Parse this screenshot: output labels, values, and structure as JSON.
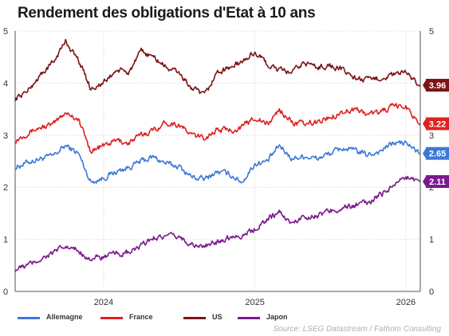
{
  "chart_data": {
    "type": "line",
    "title": "Rendement des obligations d'Etat à 10 ans",
    "xlabel": "",
    "ylabel": "",
    "xlim": [
      "2023-06-01",
      "2026-02-05"
    ],
    "ylim": [
      0,
      5
    ],
    "y_ticks": [
      "0",
      "1",
      "2",
      "3",
      "4",
      "5"
    ],
    "x_ticks": [
      {
        "date": "2024-01-01",
        "label": "2024"
      },
      {
        "date": "2025-01-01",
        "label": "2025"
      },
      {
        "date": "2026-01-01",
        "label": "2026"
      }
    ],
    "grid": true,
    "legend_position": "bottom",
    "source": "Source: LSEG Datastream / Fathom Consulting",
    "series": [
      {
        "name": "Allemagne",
        "color": "#3c78d8",
        "end_label": "2.65",
        "points": [
          [
            "2023-06-01",
            2.38
          ],
          [
            "2023-07-01",
            2.48
          ],
          [
            "2023-08-01",
            2.55
          ],
          [
            "2023-09-01",
            2.6
          ],
          [
            "2023-10-01",
            2.8
          ],
          [
            "2023-11-01",
            2.65
          ],
          [
            "2023-12-01",
            2.1
          ],
          [
            "2024-01-01",
            2.18
          ],
          [
            "2024-02-01",
            2.3
          ],
          [
            "2024-03-01",
            2.38
          ],
          [
            "2024-04-01",
            2.5
          ],
          [
            "2024-05-01",
            2.58
          ],
          [
            "2024-06-01",
            2.45
          ],
          [
            "2024-07-01",
            2.4
          ],
          [
            "2024-08-01",
            2.2
          ],
          [
            "2024-09-01",
            2.15
          ],
          [
            "2024-10-01",
            2.3
          ],
          [
            "2024-11-01",
            2.25
          ],
          [
            "2024-12-01",
            2.1
          ],
          [
            "2025-01-01",
            2.45
          ],
          [
            "2025-02-01",
            2.5
          ],
          [
            "2025-03-01",
            2.8
          ],
          [
            "2025-04-01",
            2.55
          ],
          [
            "2025-05-01",
            2.6
          ],
          [
            "2025-06-01",
            2.55
          ],
          [
            "2025-07-01",
            2.65
          ],
          [
            "2025-08-01",
            2.75
          ],
          [
            "2025-09-01",
            2.7
          ],
          [
            "2025-10-01",
            2.62
          ],
          [
            "2025-11-01",
            2.7
          ],
          [
            "2025-12-01",
            2.85
          ],
          [
            "2026-01-01",
            2.85
          ],
          [
            "2026-02-05",
            2.65
          ]
        ]
      },
      {
        "name": "France",
        "color": "#e02020",
        "end_label": "3.22",
        "points": [
          [
            "2023-06-01",
            2.9
          ],
          [
            "2023-07-01",
            3.05
          ],
          [
            "2023-08-01",
            3.15
          ],
          [
            "2023-09-01",
            3.2
          ],
          [
            "2023-10-01",
            3.45
          ],
          [
            "2023-11-01",
            3.3
          ],
          [
            "2023-12-01",
            2.7
          ],
          [
            "2024-01-01",
            2.8
          ],
          [
            "2024-02-01",
            2.9
          ],
          [
            "2024-03-01",
            2.85
          ],
          [
            "2024-04-01",
            3.0
          ],
          [
            "2024-05-01",
            3.1
          ],
          [
            "2024-06-01",
            3.25
          ],
          [
            "2024-07-01",
            3.2
          ],
          [
            "2024-08-01",
            3.0
          ],
          [
            "2024-09-01",
            2.95
          ],
          [
            "2024-10-01",
            3.1
          ],
          [
            "2024-11-01",
            3.1
          ],
          [
            "2024-12-01",
            3.15
          ],
          [
            "2025-01-01",
            3.35
          ],
          [
            "2025-02-01",
            3.2
          ],
          [
            "2025-03-01",
            3.5
          ],
          [
            "2025-04-01",
            3.25
          ],
          [
            "2025-05-01",
            3.2
          ],
          [
            "2025-06-01",
            3.25
          ],
          [
            "2025-07-01",
            3.35
          ],
          [
            "2025-08-01",
            3.45
          ],
          [
            "2025-09-01",
            3.5
          ],
          [
            "2025-10-01",
            3.4
          ],
          [
            "2025-11-01",
            3.45
          ],
          [
            "2025-12-01",
            3.55
          ],
          [
            "2026-01-01",
            3.55
          ],
          [
            "2026-02-05",
            3.22
          ]
        ]
      },
      {
        "name": "US",
        "color": "#7b1416",
        "end_label": "3.96",
        "points": [
          [
            "2023-06-01",
            3.7
          ],
          [
            "2023-07-01",
            3.85
          ],
          [
            "2023-08-01",
            4.15
          ],
          [
            "2023-09-01",
            4.4
          ],
          [
            "2023-10-01",
            4.8
          ],
          [
            "2023-11-01",
            4.45
          ],
          [
            "2023-12-01",
            3.9
          ],
          [
            "2024-01-01",
            4.0
          ],
          [
            "2024-02-01",
            4.25
          ],
          [
            "2024-03-01",
            4.2
          ],
          [
            "2024-04-01",
            4.6
          ],
          [
            "2024-05-01",
            4.5
          ],
          [
            "2024-06-01",
            4.3
          ],
          [
            "2024-07-01",
            4.2
          ],
          [
            "2024-08-01",
            3.9
          ],
          [
            "2024-09-01",
            3.75
          ],
          [
            "2024-10-01",
            4.2
          ],
          [
            "2024-11-01",
            4.3
          ],
          [
            "2024-12-01",
            4.4
          ],
          [
            "2025-01-01",
            4.6
          ],
          [
            "2025-02-01",
            4.35
          ],
          [
            "2025-03-01",
            4.25
          ],
          [
            "2025-04-01",
            4.2
          ],
          [
            "2025-05-01",
            4.4
          ],
          [
            "2025-06-01",
            4.3
          ],
          [
            "2025-07-01",
            4.35
          ],
          [
            "2025-08-01",
            4.25
          ],
          [
            "2025-09-01",
            4.1
          ],
          [
            "2025-10-01",
            4.05
          ],
          [
            "2025-11-01",
            4.1
          ],
          [
            "2025-12-01",
            4.15
          ],
          [
            "2026-01-01",
            4.2
          ],
          [
            "2026-02-05",
            3.96
          ]
        ]
      },
      {
        "name": "Japon",
        "color": "#7a1a8c",
        "end_label": "2.11",
        "points": [
          [
            "2023-06-01",
            0.42
          ],
          [
            "2023-07-01",
            0.5
          ],
          [
            "2023-08-01",
            0.62
          ],
          [
            "2023-09-01",
            0.75
          ],
          [
            "2023-10-01",
            0.85
          ],
          [
            "2023-11-01",
            0.78
          ],
          [
            "2023-12-01",
            0.62
          ],
          [
            "2024-01-01",
            0.66
          ],
          [
            "2024-02-01",
            0.72
          ],
          [
            "2024-03-01",
            0.73
          ],
          [
            "2024-04-01",
            0.87
          ],
          [
            "2024-05-01",
            1.04
          ],
          [
            "2024-06-01",
            1.05
          ],
          [
            "2024-07-01",
            1.05
          ],
          [
            "2024-08-01",
            0.9
          ],
          [
            "2024-09-01",
            0.85
          ],
          [
            "2024-10-01",
            0.95
          ],
          [
            "2024-11-01",
            1.05
          ],
          [
            "2024-12-01",
            1.08
          ],
          [
            "2025-01-01",
            1.2
          ],
          [
            "2025-02-01",
            1.4
          ],
          [
            "2025-03-01",
            1.52
          ],
          [
            "2025-04-01",
            1.3
          ],
          [
            "2025-05-01",
            1.45
          ],
          [
            "2025-06-01",
            1.45
          ],
          [
            "2025-07-01",
            1.55
          ],
          [
            "2025-08-01",
            1.6
          ],
          [
            "2025-09-01",
            1.65
          ],
          [
            "2025-10-01",
            1.7
          ],
          [
            "2025-11-01",
            1.85
          ],
          [
            "2025-12-01",
            2.05
          ],
          [
            "2026-01-01",
            2.2
          ],
          [
            "2026-02-05",
            2.11
          ]
        ]
      }
    ]
  }
}
